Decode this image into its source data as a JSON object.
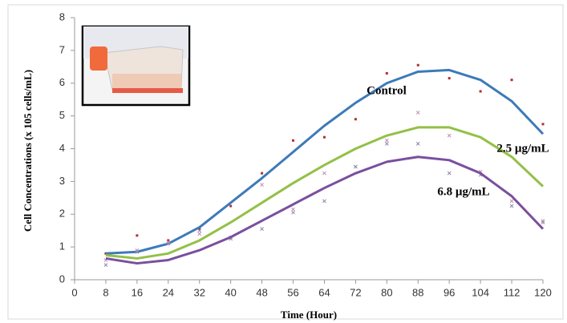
{
  "chart_data": {
    "type": "line",
    "xlabel": "Time (Hour)",
    "ylabel": "Cell Concentrations (x 105 cells/mL)",
    "x": [
      8,
      16,
      24,
      32,
      40,
      48,
      56,
      64,
      72,
      80,
      88,
      96,
      104,
      112,
      120
    ],
    "xlim": [
      0,
      120
    ],
    "xticks": [
      0,
      8,
      16,
      24,
      32,
      40,
      48,
      56,
      64,
      72,
      80,
      88,
      96,
      104,
      112,
      120
    ],
    "ylim": [
      0,
      8
    ],
    "yticks": [
      0,
      1,
      2,
      3,
      4,
      5,
      6,
      7,
      8
    ],
    "series": [
      {
        "name": "Control",
        "color": "#3d7ab8",
        "point_color": "#b0303a",
        "values": [
          0.8,
          0.85,
          1.1,
          1.6,
          2.35,
          3.1,
          3.9,
          4.7,
          5.4,
          6.0,
          6.35,
          6.4,
          6.1,
          5.45,
          4.45
        ],
        "points": [
          0.8,
          1.35,
          1.2,
          1.55,
          2.25,
          3.25,
          4.25,
          4.35,
          4.9,
          6.3,
          6.55,
          6.15,
          5.75,
          6.1,
          4.75
        ]
      },
      {
        "name": "2.5 µg/mL",
        "color": "#93c047",
        "point_color": "#c58fb0",
        "values": [
          0.75,
          0.65,
          0.8,
          1.2,
          1.75,
          2.35,
          2.95,
          3.5,
          4.0,
          4.4,
          4.65,
          4.65,
          4.35,
          3.75,
          2.85
        ],
        "points": [
          0.6,
          0.9,
          1.15,
          1.4,
          1.3,
          2.9,
          2.15,
          3.25,
          3.45,
          4.25,
          5.1,
          4.4,
          3.3,
          2.4,
          1.8
        ]
      },
      {
        "name": "6.8 µg/mL",
        "color": "#7a4f9e",
        "point_color": "#8a8aa8",
        "values": [
          0.65,
          0.5,
          0.6,
          0.9,
          1.3,
          1.8,
          2.3,
          2.8,
          3.25,
          3.6,
          3.75,
          3.65,
          3.25,
          2.55,
          1.55
        ],
        "points": [
          0.45,
          0.85,
          1.1,
          1.5,
          1.25,
          1.55,
          2.05,
          2.4,
          3.45,
          4.15,
          4.15,
          3.25,
          3.2,
          2.25,
          1.75
        ]
      }
    ]
  }
}
